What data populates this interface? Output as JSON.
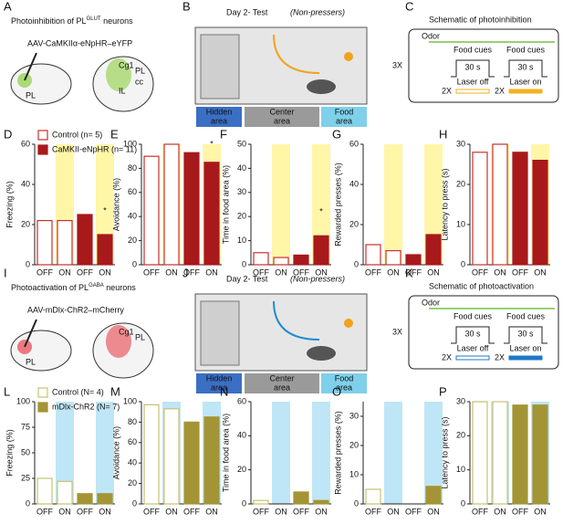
{
  "diagrams": {
    "A": {
      "letter": "A",
      "title": "Photoinhibition of PL",
      "title_sup": "GLUT",
      "title_end": " neurons",
      "virus": "AAV-CaMKIIα-eNpHR–eYFP",
      "labels": [
        "PL",
        "Cg1",
        "PL",
        "IL",
        "cc"
      ]
    },
    "B": {
      "letter": "B",
      "title": "Day 2- Test",
      "subtitle": "(Non-pressers)",
      "zones": [
        [
          "Hidden",
          "area"
        ],
        [
          "Center",
          "area"
        ],
        [
          "Food",
          "area"
        ]
      ]
    },
    "C": {
      "letter": "C",
      "title": "Schematic of photoinhibition",
      "odor": "Odor",
      "cues": [
        "Food cues",
        "Food cues"
      ],
      "durations": [
        "30 s",
        "30 s"
      ],
      "repeat": "3X",
      "laser_repeats": [
        "2X",
        "2X"
      ],
      "lasers": [
        "Laser off",
        "Laser on"
      ]
    },
    "I": {
      "letter": "I",
      "title": "Photoactivation of PL",
      "title_sup": "GABA",
      "title_end": " neurons",
      "virus": "AAV-mDlx-ChR2–mCherry",
      "labels": [
        "PL",
        "Cg1",
        "PL"
      ]
    },
    "J": {
      "letter": "J",
      "title": "Day 2- Test",
      "subtitle": "(Non-pressers)",
      "zones": [
        [
          "Hidden",
          "area"
        ],
        [
          "Center",
          "area"
        ],
        [
          "Food",
          "area"
        ]
      ]
    },
    "K": {
      "letter": "K",
      "title": "Schematic of photoactivation",
      "odor": "Odor",
      "cues": [
        "Food cues",
        "Food cues"
      ],
      "durations": [
        "30 s",
        "30 s"
      ],
      "repeat": "3X",
      "laser_repeats": [
        "2X",
        "2X"
      ],
      "lasers": [
        "Laser off",
        "Laser on"
      ]
    }
  },
  "chart_data": [
    {
      "type": "bar",
      "panel": "D",
      "y_label": "Freezing (%)",
      "categories": [
        "OFF",
        "ON",
        "OFF",
        "ON"
      ],
      "ylim": [
        0,
        60
      ],
      "yticks": [
        0,
        20,
        40,
        60
      ],
      "highlight": "#fff6a8",
      "highlight_indices": [
        1,
        3
      ],
      "legend": true,
      "series": [
        {
          "name": "Control (n= 5)",
          "color": "#c9302c",
          "style": "outline",
          "values": [
            22,
            22,
            null,
            null
          ]
        },
        {
          "name": "CaMKII-eNpHR (n= 11)",
          "color": "#a8191b",
          "style": "filled",
          "values": [
            null,
            null,
            25,
            15
          ]
        }
      ],
      "annotations": [
        {
          "text": "*",
          "index": 3
        }
      ]
    },
    {
      "type": "bar",
      "panel": "E",
      "y_label": "Avoidance (%)",
      "categories": [
        "OFF",
        "ON",
        "OFF",
        "ON"
      ],
      "ylim": [
        0,
        100
      ],
      "yticks": [
        0,
        20,
        40,
        60,
        80,
        100
      ],
      "highlight": "#fff6a8",
      "highlight_indices": [
        1,
        3
      ],
      "series": [
        {
          "color": "#c9302c",
          "style": "outline",
          "values": [
            90,
            100,
            null,
            null
          ]
        },
        {
          "color": "#a8191b",
          "style": "filled",
          "values": [
            null,
            null,
            93,
            85
          ]
        }
      ],
      "annotations": [
        {
          "text": "*",
          "index": 3
        }
      ]
    },
    {
      "type": "bar",
      "panel": "F",
      "y_label": "Time in food area (%)",
      "categories": [
        "OFF",
        "ON",
        "OFF",
        "ON"
      ],
      "ylim": [
        0,
        50
      ],
      "yticks": [
        0,
        10,
        20,
        30,
        40,
        50
      ],
      "highlight": "#fff6a8",
      "highlight_indices": [
        1,
        3
      ],
      "series": [
        {
          "color": "#c9302c",
          "style": "outline",
          "values": [
            5,
            3,
            null,
            null
          ]
        },
        {
          "color": "#a8191b",
          "style": "filled",
          "values": [
            null,
            null,
            4,
            12
          ]
        }
      ],
      "annotations": [
        {
          "text": "*",
          "index": 3
        }
      ]
    },
    {
      "type": "bar",
      "panel": "G",
      "y_label": "Rewarded presses (%)",
      "categories": [
        "OFF",
        "ON",
        "OFF",
        "ON"
      ],
      "ylim": [
        0,
        60
      ],
      "yticks": [
        0,
        20,
        40,
        60
      ],
      "highlight": "#fff6a8",
      "highlight_indices": [
        1,
        3
      ],
      "series": [
        {
          "color": "#c9302c",
          "style": "outline",
          "values": [
            10,
            7,
            null,
            null
          ]
        },
        {
          "color": "#a8191b",
          "style": "filled",
          "values": [
            null,
            null,
            5,
            15
          ]
        }
      ]
    },
    {
      "type": "bar",
      "panel": "H",
      "y_label": "Latency to press (s)",
      "categories": [
        "OFF",
        "ON",
        "OFF",
        "ON"
      ],
      "ylim": [
        0,
        30
      ],
      "yticks": [
        0,
        10,
        20,
        30
      ],
      "highlight": "#fff6a8",
      "highlight_indices": [
        1,
        3
      ],
      "series": [
        {
          "color": "#c9302c",
          "style": "outline",
          "values": [
            28,
            30,
            null,
            null
          ]
        },
        {
          "color": "#a8191b",
          "style": "filled",
          "values": [
            null,
            null,
            28,
            26
          ]
        }
      ]
    },
    {
      "type": "bar",
      "panel": "L",
      "y_label": "Freezing (%)",
      "categories": [
        "OFF",
        "ON",
        "OFF",
        "ON"
      ],
      "ylim": [
        0,
        100
      ],
      "yticks": [
        0,
        25,
        50,
        75,
        100
      ],
      "highlight": "#bfe6f6",
      "highlight_indices": [
        1,
        3
      ],
      "legend": true,
      "series": [
        {
          "name": "Control (N= 4)",
          "color": "#c8c070",
          "style": "outline",
          "values": [
            25,
            22,
            null,
            null
          ]
        },
        {
          "name": "mDlx-ChR2 (N= 7)",
          "color": "#a39535",
          "style": "filled",
          "values": [
            null,
            null,
            10,
            10
          ]
        }
      ]
    },
    {
      "type": "bar",
      "panel": "M",
      "y_label": "Avoidance (%)",
      "categories": [
        "OFF",
        "ON",
        "OFF",
        "ON"
      ],
      "ylim": [
        0,
        100
      ],
      "yticks": [
        0,
        20,
        40,
        60,
        80,
        100
      ],
      "highlight": "#bfe6f6",
      "highlight_indices": [
        1,
        3
      ],
      "series": [
        {
          "color": "#c8c070",
          "style": "outline",
          "values": [
            97,
            93,
            null,
            null
          ]
        },
        {
          "color": "#a39535",
          "style": "filled",
          "values": [
            null,
            null,
            80,
            85
          ]
        }
      ]
    },
    {
      "type": "bar",
      "panel": "N",
      "y_label": "Time in food area (%)",
      "categories": [
        "OFF",
        "ON",
        "OFF",
        "ON"
      ],
      "ylim": [
        0,
        60
      ],
      "yticks": [
        0,
        20,
        40,
        60
      ],
      "highlight": "#bfe6f6",
      "highlight_indices": [
        1,
        3
      ],
      "series": [
        {
          "color": "#c8c070",
          "style": "outline",
          "values": [
            2,
            0,
            null,
            null
          ]
        },
        {
          "color": "#a39535",
          "style": "filled",
          "values": [
            null,
            null,
            7,
            2
          ]
        }
      ]
    },
    {
      "type": "bar",
      "panel": "O",
      "y_label": "Rewarded presses (%)",
      "categories": [
        "OFF",
        "ON",
        "OFF",
        "ON"
      ],
      "ylim": [
        0,
        35
      ],
      "yticks": [
        0,
        10,
        20,
        30
      ],
      "highlight": "#bfe6f6",
      "highlight_indices": [
        1,
        3
      ],
      "series": [
        {
          "color": "#c8c070",
          "style": "outline",
          "values": [
            5,
            0,
            null,
            null
          ]
        },
        {
          "color": "#a39535",
          "style": "filled",
          "values": [
            null,
            null,
            0,
            6
          ]
        }
      ]
    },
    {
      "type": "bar",
      "panel": "P",
      "y_label": "Latency to press (s)",
      "categories": [
        "OFF",
        "ON",
        "OFF",
        "ON"
      ],
      "ylim": [
        0,
        30
      ],
      "yticks": [
        0,
        10,
        20,
        30
      ],
      "highlight": "#bfe6f6",
      "highlight_indices": [
        1,
        3
      ],
      "series": [
        {
          "color": "#c8c070",
          "style": "outline",
          "values": [
            30,
            30,
            null,
            null
          ]
        },
        {
          "color": "#a39535",
          "style": "filled",
          "values": [
            null,
            null,
            29,
            29
          ]
        }
      ]
    }
  ]
}
